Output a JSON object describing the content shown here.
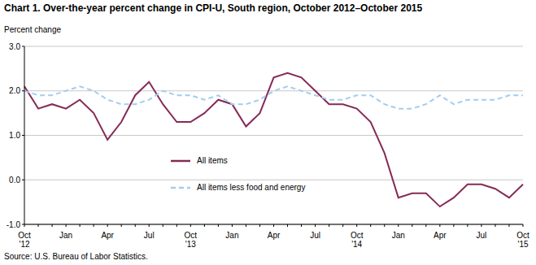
{
  "chart_data": {
    "type": "line",
    "title": "Chart 1. Over-the-year percent change in CPI-U, South region, October 2012–October  2015",
    "y_label": "Percent change",
    "source": "Source: U.S. Bureau of Labor Statistics.",
    "categories": [
      "Oct\n'12",
      null,
      null,
      "Jan",
      null,
      null,
      "Apr",
      null,
      null,
      "Jul",
      null,
      null,
      "Oct\n'13",
      null,
      null,
      "Jan",
      null,
      null,
      "Apr",
      null,
      null,
      "Jul",
      null,
      null,
      "Oct\n'14",
      null,
      null,
      "Jan",
      null,
      null,
      "Apr",
      null,
      null,
      "Jul",
      null,
      null,
      "Oct\n'15"
    ],
    "series": [
      {
        "name": "All items",
        "color": "#862a57",
        "line_style": "solid",
        "values": [
          2.1,
          1.6,
          1.7,
          1.6,
          1.8,
          1.5,
          0.9,
          1.3,
          1.9,
          2.2,
          1.7,
          1.3,
          1.3,
          1.5,
          1.8,
          1.7,
          1.2,
          1.5,
          2.3,
          2.4,
          2.3,
          2.0,
          1.7,
          1.7,
          1.6,
          1.3,
          0.6,
          -0.4,
          -0.3,
          -0.3,
          -0.6,
          -0.4,
          -0.1,
          -0.1,
          -0.2,
          -0.4,
          -0.1
        ]
      },
      {
        "name": "All items less food and energy",
        "color": "#a3cdf0",
        "line_style": "dashed",
        "values": [
          2.0,
          1.9,
          1.9,
          2.0,
          2.1,
          2.0,
          1.8,
          1.7,
          1.7,
          1.8,
          2.0,
          1.9,
          1.9,
          1.8,
          1.9,
          1.7,
          1.7,
          1.8,
          2.0,
          2.1,
          2.0,
          1.9,
          1.8,
          1.8,
          1.9,
          1.9,
          1.7,
          1.6,
          1.6,
          1.7,
          1.9,
          1.7,
          1.8,
          1.8,
          1.8,
          1.9,
          1.9
        ]
      }
    ],
    "ylim": [
      -1.0,
      3.0
    ],
    "yticks": [
      {
        "value": -1.0,
        "label": "-1.0"
      },
      {
        "value": 0.0,
        "label": "0.0"
      },
      {
        "value": 1.0,
        "label": "1.0"
      },
      {
        "value": 2.0,
        "label": "2.0"
      },
      {
        "value": 3.0,
        "label": "3.0"
      }
    ],
    "grid": true,
    "legend": "center left"
  }
}
